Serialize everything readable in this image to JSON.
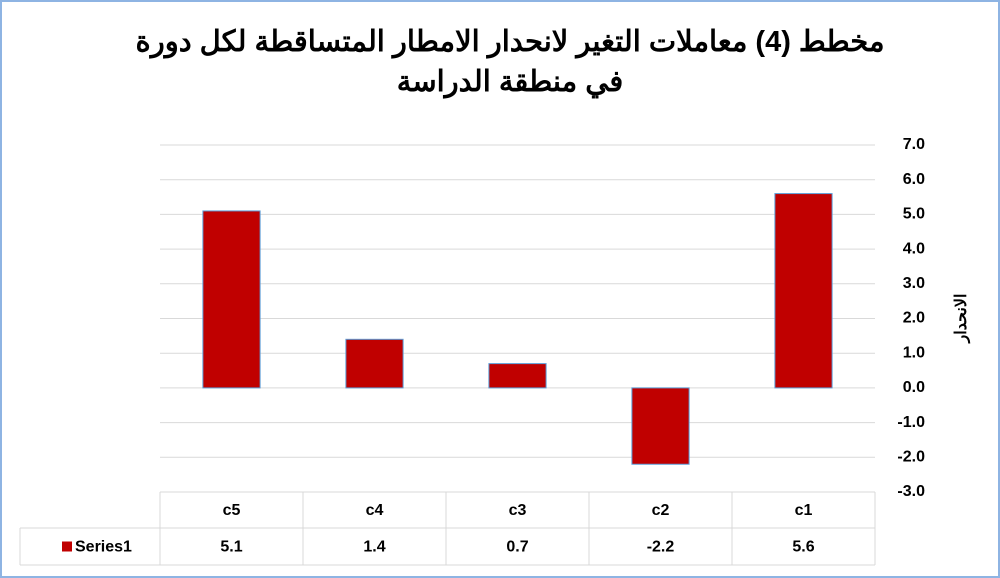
{
  "chart_data": {
    "type": "bar",
    "title": "مخطط (4) معاملات التغير لانحدار الامطار المتساقطة لكل دورة في منطقة الدراسة",
    "y_label": "الانحدار",
    "categories": [
      "c5",
      "c4",
      "c3",
      "c2",
      "c1"
    ],
    "series": [
      {
        "name": "Series1",
        "color": "#c00000",
        "values": [
          5.1,
          1.4,
          0.7,
          -2.2,
          5.6
        ]
      }
    ],
    "ylim": [
      -3,
      7
    ],
    "yticks": [
      {
        "value": 7,
        "label": "7.0"
      },
      {
        "value": 6,
        "label": "6.0"
      },
      {
        "value": 5,
        "label": "5.0"
      },
      {
        "value": 4,
        "label": "4.0"
      },
      {
        "value": 3,
        "label": "3.0"
      },
      {
        "value": 2,
        "label": "2.0"
      },
      {
        "value": 1,
        "label": "1.0"
      },
      {
        "value": 0,
        "label": "0.0"
      },
      {
        "value": -1,
        "label": "-1.0"
      },
      {
        "value": -2,
        "label": "-2.0"
      },
      {
        "value": -3,
        "label": "-3.0"
      }
    ],
    "grid": true,
    "y_axis_side": "right",
    "data_table": true
  }
}
